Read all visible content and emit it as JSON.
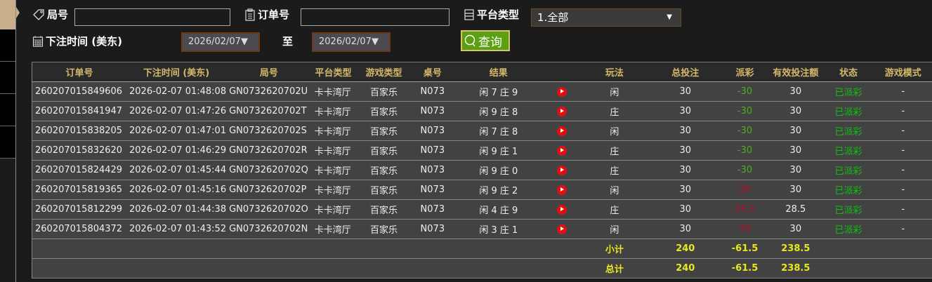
{
  "filters": {
    "round_label": "局号",
    "round_value": "",
    "order_label": "订单号",
    "order_value": "",
    "platform_label": "平台类型",
    "platform_value": "1.全部",
    "time_label": "下注时间 (美东)",
    "date_from": "2026/02/07",
    "to_label": "至",
    "date_to": "2026/02/07",
    "query_label": "查询"
  },
  "table": {
    "headers": [
      "订单号",
      "下注时间 (美东)",
      "局号",
      "平台类型",
      "游戏类型",
      "桌号",
      "结果",
      "",
      "玩法",
      "总投注",
      "派彩",
      "有效投注额",
      "状态",
      "游戏模式"
    ],
    "rows": [
      {
        "order": "260207015849606",
        "time": "2026-02-07 01:48:08",
        "round": "GN0732620702U",
        "platform": "卡卡湾厅",
        "game": "百家乐",
        "table": "N073",
        "result": "闲 7 庄 9",
        "play": "闲",
        "bet": "30",
        "payout": "-30",
        "payout_color": "green",
        "valid": "30",
        "status": "已派彩",
        "mode": "-"
      },
      {
        "order": "260207015841947",
        "time": "2026-02-07 01:47:26",
        "round": "GN0732620702T",
        "platform": "卡卡湾厅",
        "game": "百家乐",
        "table": "N073",
        "result": "闲 9 庄 8",
        "play": "庄",
        "bet": "30",
        "payout": "-30",
        "payout_color": "green",
        "valid": "30",
        "status": "已派彩",
        "mode": "-"
      },
      {
        "order": "260207015838205",
        "time": "2026-02-07 01:47:01",
        "round": "GN0732620702S",
        "platform": "卡卡湾厅",
        "game": "百家乐",
        "table": "N073",
        "result": "闲 7 庄 8",
        "play": "闲",
        "bet": "30",
        "payout": "-30",
        "payout_color": "green",
        "valid": "30",
        "status": "已派彩",
        "mode": "-"
      },
      {
        "order": "260207015832620",
        "time": "2026-02-07 01:46:29",
        "round": "GN0732620702R",
        "platform": "卡卡湾厅",
        "game": "百家乐",
        "table": "N073",
        "result": "闲 9 庄 1",
        "play": "庄",
        "bet": "30",
        "payout": "-30",
        "payout_color": "green",
        "valid": "30",
        "status": "已派彩",
        "mode": "-"
      },
      {
        "order": "260207015824429",
        "time": "2026-02-07 01:45:44",
        "round": "GN0732620702Q",
        "platform": "卡卡湾厅",
        "game": "百家乐",
        "table": "N073",
        "result": "闲 9 庄 0",
        "play": "庄",
        "bet": "30",
        "payout": "-30",
        "payout_color": "green",
        "valid": "30",
        "status": "已派彩",
        "mode": "-"
      },
      {
        "order": "260207015819365",
        "time": "2026-02-07 01:45:16",
        "round": "GN0732620702P",
        "platform": "卡卡湾厅",
        "game": "百家乐",
        "table": "N073",
        "result": "闲 9 庄 2",
        "play": "闲",
        "bet": "30",
        "payout": "30",
        "payout_color": "red",
        "valid": "30",
        "status": "已派彩",
        "mode": "-"
      },
      {
        "order": "260207015812299",
        "time": "2026-02-07 01:44:38",
        "round": "GN0732620702O",
        "platform": "卡卡湾厅",
        "game": "百家乐",
        "table": "N073",
        "result": "闲 4 庄 9",
        "play": "庄",
        "bet": "30",
        "payout": "28.5",
        "payout_color": "red",
        "valid": "28.5",
        "status": "已派彩",
        "mode": "-"
      },
      {
        "order": "260207015804372",
        "time": "2026-02-07 01:43:52",
        "round": "GN0732620702N",
        "platform": "卡卡湾厅",
        "game": "百家乐",
        "table": "N073",
        "result": "闲 3 庄 1",
        "play": "闲",
        "bet": "30",
        "payout": "30",
        "payout_color": "red",
        "valid": "30",
        "status": "已派彩",
        "mode": "-"
      }
    ],
    "subtotal": {
      "label": "小计",
      "bet": "240",
      "payout": "-61.5",
      "valid": "238.5"
    },
    "total": {
      "label": "总计",
      "bet": "240",
      "payout": "-61.5",
      "valid": "238.5"
    }
  },
  "colors": {
    "header_text": "#d4b86a",
    "query_button": "#5aa012",
    "loss": "#4caf1a",
    "win": "#b01030",
    "paid": "#10c010",
    "total": "#e8e820"
  }
}
